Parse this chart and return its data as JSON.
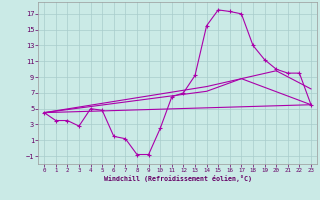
{
  "background_color": "#caeae6",
  "grid_color": "#a8cccc",
  "line_color": "#aa00aa",
  "xlim": [
    -0.5,
    23.5
  ],
  "ylim": [
    -2,
    18.5
  ],
  "xticks": [
    0,
    1,
    2,
    3,
    4,
    5,
    6,
    7,
    8,
    9,
    10,
    11,
    12,
    13,
    14,
    15,
    16,
    17,
    18,
    19,
    20,
    21,
    22,
    23
  ],
  "yticks": [
    -1,
    1,
    3,
    5,
    7,
    9,
    11,
    13,
    15,
    17
  ],
  "xlabel": "Windchill (Refroidissement éolien,°C)",
  "main_x": [
    0,
    1,
    2,
    3,
    4,
    5,
    6,
    7,
    8,
    9,
    10,
    11,
    12,
    13,
    14,
    15,
    16,
    17,
    18,
    19,
    20,
    21,
    22,
    23
  ],
  "main_y": [
    4.5,
    3.5,
    3.5,
    2.8,
    5.0,
    4.8,
    1.5,
    1.2,
    -0.8,
    -0.8,
    2.5,
    6.5,
    7.0,
    9.2,
    15.5,
    17.5,
    17.3,
    17.0,
    13.0,
    11.2,
    10.0,
    9.5,
    9.5,
    5.5
  ],
  "line2_x": [
    0,
    23
  ],
  "line2_y": [
    4.5,
    5.5
  ],
  "line3_x": [
    0,
    14,
    17,
    23
  ],
  "line3_y": [
    4.5,
    7.2,
    8.8,
    5.5
  ],
  "line4_x": [
    0,
    14,
    20,
    23
  ],
  "line4_y": [
    4.5,
    7.8,
    9.8,
    7.5
  ]
}
